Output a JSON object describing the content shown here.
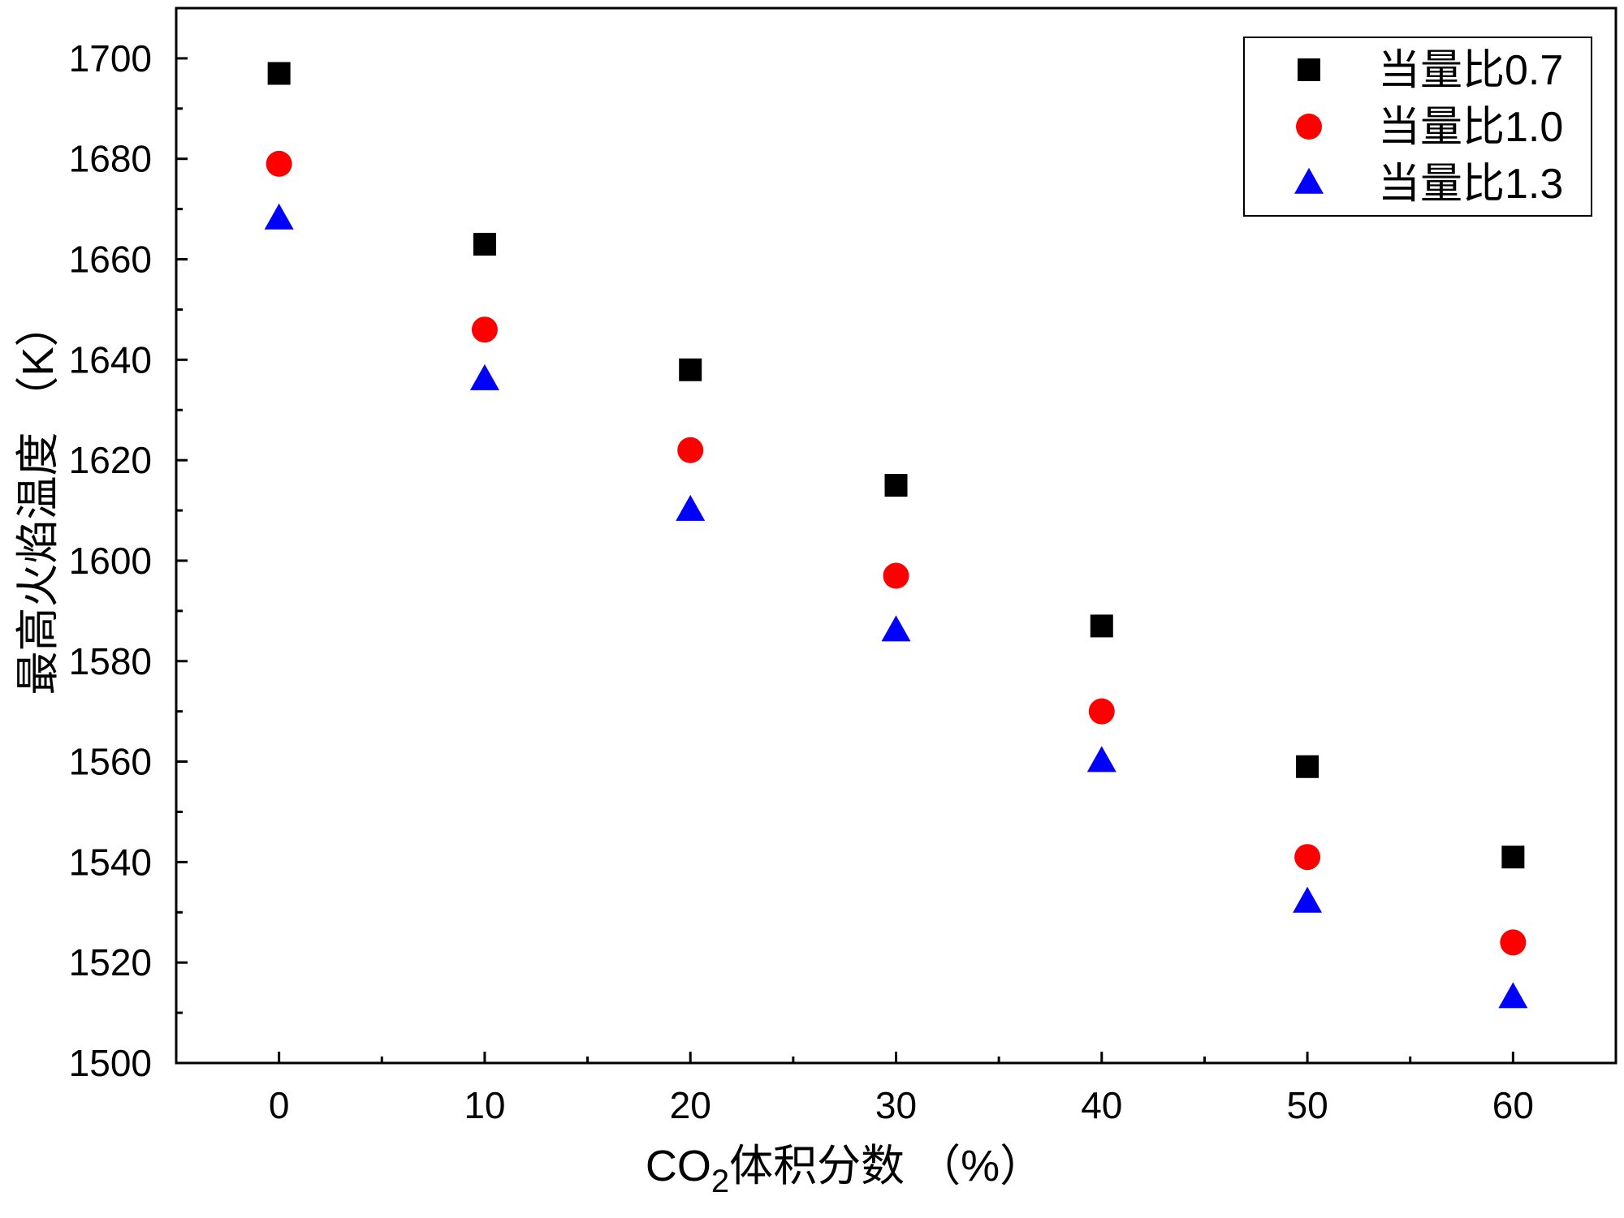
{
  "chart_data": {
    "type": "scatter",
    "title": "",
    "xlabel_main": "CO",
    "xlabel_sub": "2",
    "xlabel_rest": "体积分数 （%）",
    "ylabel": "最高火焰温度 （K）",
    "xlim": [
      -5,
      65
    ],
    "ylim": [
      1500,
      1710
    ],
    "x_ticks": [
      0,
      10,
      20,
      30,
      40,
      50,
      60
    ],
    "y_ticks": [
      1500,
      1520,
      1540,
      1560,
      1580,
      1600,
      1620,
      1640,
      1660,
      1680,
      1700
    ],
    "x": [
      0,
      10,
      20,
      30,
      40,
      50,
      60
    ],
    "series": [
      {
        "name": "当量比0.7",
        "marker": "square",
        "color": "#000000",
        "values": [
          1697,
          1663,
          1638,
          1615,
          1587,
          1559,
          1541
        ]
      },
      {
        "name": "当量比1.0",
        "marker": "circle",
        "color": "#ff0000",
        "values": [
          1679,
          1646,
          1622,
          1597,
          1570,
          1541,
          1524
        ]
      },
      {
        "name": "当量比1.3",
        "marker": "triangle",
        "color": "#0000ff",
        "values": [
          1668,
          1636,
          1610,
          1586,
          1560,
          1532,
          1513
        ]
      }
    ],
    "legend_position": "top-right",
    "grid": false
  }
}
